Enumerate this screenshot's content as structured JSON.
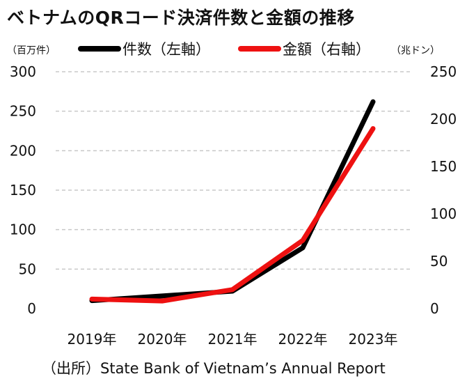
{
  "chart_data": {
    "type": "line",
    "title": "ベトナムのQRコード決済件数と金額の推移",
    "categories": [
      "2019年",
      "2020年",
      "2021年",
      "2022年",
      "2023年"
    ],
    "series": [
      {
        "name": "件数（左軸）",
        "axis": "left",
        "color": "#000000",
        "values": [
          10,
          16,
          22,
          77,
          262
        ]
      },
      {
        "name": "金額（右軸）",
        "axis": "right",
        "color": "#ee1111",
        "values": [
          10,
          8,
          20,
          72,
          190
        ]
      }
    ],
    "y_left": {
      "unit": "（百万件）",
      "ylim": [
        0,
        300
      ],
      "ticks": [
        "0",
        "50",
        "100",
        "150",
        "200",
        "250",
        "300"
      ]
    },
    "y_right": {
      "unit": "（兆ドン）",
      "ylim": [
        0,
        250
      ],
      "ticks": [
        "0",
        "50",
        "100",
        "150",
        "200",
        "250"
      ]
    },
    "grid": true,
    "legend_position": "top"
  },
  "source": "（出所）State Bank of Vietnam’s Annual Report"
}
